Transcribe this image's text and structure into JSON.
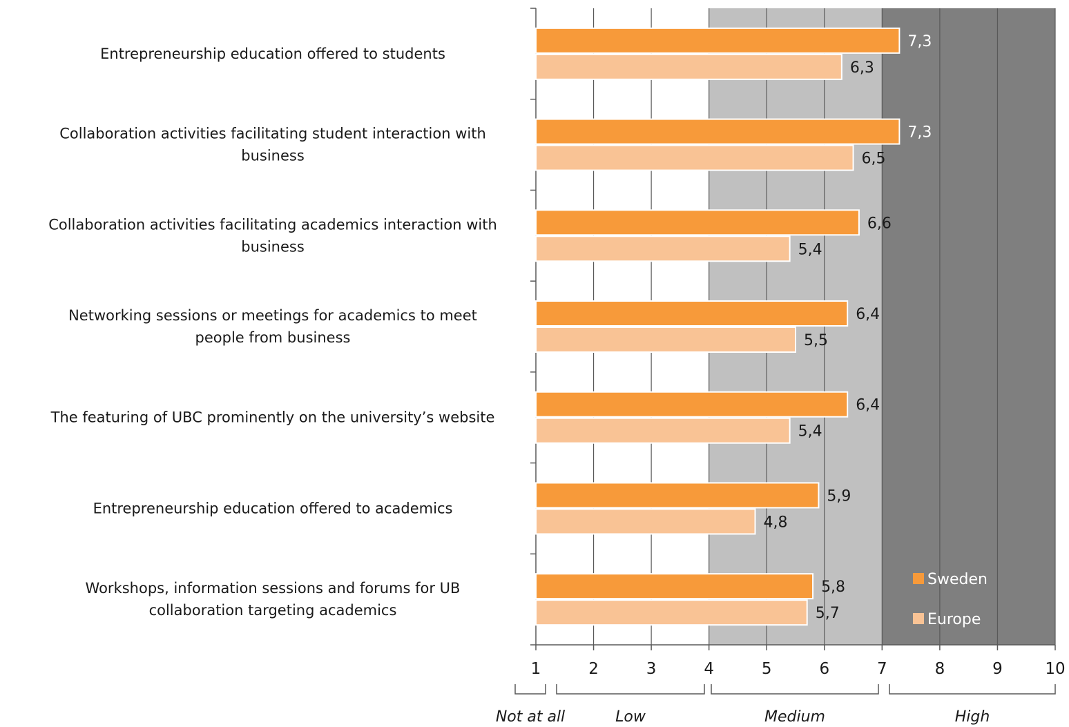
{
  "chart_data": {
    "type": "bar",
    "orientation": "horizontal",
    "categories": [
      [
        "Entrepreneurship education offered to students"
      ],
      [
        "Collaboration activities facilitating student interaction with",
        "business"
      ],
      [
        "Collaboration activities facilitating academics interaction with",
        "business"
      ],
      [
        "Networking sessions or meetings for academics to meet",
        "people from business"
      ],
      [
        "The featuring of UBC prominently on the university’s website"
      ],
      [
        "Entrepreneurship education offered to academics"
      ],
      [
        "Workshops, information sessions and forums for UB",
        "collaboration targeting academics"
      ]
    ],
    "series": [
      {
        "name": "Sweden",
        "values": [
          7.3,
          7.3,
          6.6,
          6.4,
          6.4,
          5.9,
          5.8
        ],
        "labels": [
          "7,3",
          "7,3",
          "6,6",
          "6,4",
          "6,4",
          "5,9",
          "5,8"
        ],
        "color": "#f79a3a"
      },
      {
        "name": "Europe",
        "values": [
          6.3,
          6.5,
          5.4,
          5.5,
          5.4,
          4.8,
          5.7
        ],
        "labels": [
          "6,3",
          "6,5",
          "5,4",
          "5,5",
          "5,4",
          "4,8",
          "5,7"
        ],
        "color": "#f9c395"
      }
    ],
    "x_ticks": [
      "1",
      "2",
      "3",
      "4",
      "5",
      "6",
      "7",
      "8",
      "9",
      "10"
    ],
    "xlim": [
      1,
      10
    ],
    "bands": [
      {
        "label": "Not at all",
        "from": 1,
        "to": 1.2,
        "shade": "#ffffff"
      },
      {
        "label": "Low",
        "from": 1.4,
        "to": 4,
        "shade": "#ffffff"
      },
      {
        "label": "Medium",
        "from": 4,
        "to": 7,
        "shade": "#c0c0c0"
      },
      {
        "label": "High",
        "from": 7,
        "to": 10,
        "shade": "#7f7f7f"
      }
    ],
    "legend": {
      "placement": "bottom-right"
    },
    "grid": true,
    "colors": {
      "gridline": "#595959",
      "axis": "#595959",
      "text": "#1a1a1a",
      "light_text": "#ffffff"
    }
  }
}
